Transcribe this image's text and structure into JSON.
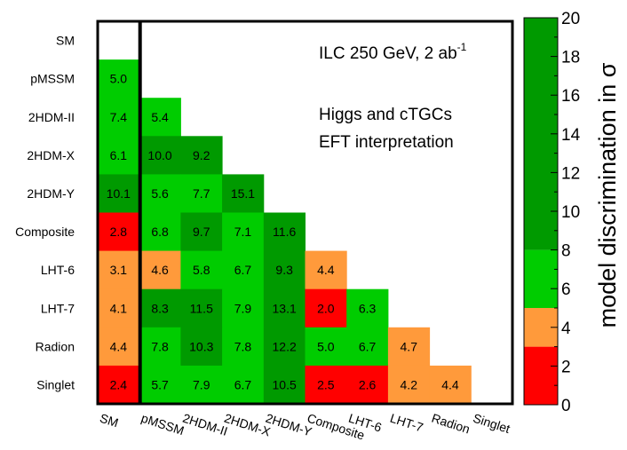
{
  "chart_data": {
    "type": "heatmap",
    "rows": [
      "SM",
      "pMSSM",
      "2HDM-II",
      "2HDM-X",
      "2HDM-Y",
      "Composite",
      "LHT-6",
      "LHT-7",
      "Radion",
      "Singlet"
    ],
    "columns": [
      "SM",
      "pMSSM",
      "2HDM-II",
      "2HDM-X",
      "2HDM-Y",
      "Composite",
      "LHT-6",
      "LHT-7",
      "Radion",
      "Singlet"
    ],
    "values": [
      [
        null,
        null,
        null,
        null,
        null,
        null,
        null,
        null,
        null,
        null
      ],
      [
        5.0,
        null,
        null,
        null,
        null,
        null,
        null,
        null,
        null,
        null
      ],
      [
        7.4,
        5.4,
        null,
        null,
        null,
        null,
        null,
        null,
        null,
        null
      ],
      [
        6.1,
        10.0,
        9.2,
        null,
        null,
        null,
        null,
        null,
        null,
        null
      ],
      [
        10.1,
        5.6,
        7.7,
        15.1,
        null,
        null,
        null,
        null,
        null,
        null
      ],
      [
        2.8,
        6.8,
        9.7,
        7.1,
        11.6,
        null,
        null,
        null,
        null,
        null
      ],
      [
        3.1,
        4.6,
        5.8,
        6.7,
        9.3,
        4.4,
        null,
        null,
        null,
        null
      ],
      [
        4.1,
        8.3,
        11.5,
        7.9,
        13.1,
        2.0,
        6.3,
        null,
        null,
        null
      ],
      [
        4.4,
        7.8,
        10.3,
        7.8,
        12.2,
        5.0,
        6.7,
        4.7,
        null,
        null
      ],
      [
        2.4,
        5.7,
        7.9,
        6.7,
        10.5,
        2.5,
        2.6,
        4.2,
        4.4,
        null
      ]
    ],
    "value_labels": [
      [
        null,
        null,
        null,
        null,
        null,
        null,
        null,
        null,
        null,
        null
      ],
      [
        "5.0",
        null,
        null,
        null,
        null,
        null,
        null,
        null,
        null,
        null
      ],
      [
        "7.4",
        "5.4",
        null,
        null,
        null,
        null,
        null,
        null,
        null,
        null
      ],
      [
        "6.1",
        "10.0",
        "9.2",
        null,
        null,
        null,
        null,
        null,
        null,
        null
      ],
      [
        "10.1",
        "5.6",
        "7.7",
        "15.1",
        null,
        null,
        null,
        null,
        null,
        null
      ],
      [
        "2.8",
        "6.8",
        "9.7",
        "7.1",
        "11.6",
        null,
        null,
        null,
        null,
        null
      ],
      [
        "3.1",
        "4.6",
        "5.8",
        "6.7",
        "9.3",
        "4.4",
        null,
        null,
        null,
        null
      ],
      [
        "4.1",
        "8.3",
        "11.5",
        "7.9",
        "13.1",
        "2.0",
        "6.3",
        null,
        null,
        null
      ],
      [
        "4.4",
        "7.8",
        "10.3",
        "7.8",
        "12.2",
        "5.0",
        "6.7",
        "4.7",
        null,
        null
      ],
      [
        "2.4",
        "5.7",
        "7.9",
        "6.7",
        "10.5",
        "2.5",
        "2.6",
        "4.2",
        "4.4",
        null
      ]
    ],
    "color_scale": {
      "min": 0,
      "max": 20,
      "bands": [
        {
          "from": 0,
          "to": 2,
          "color": "#ff0000"
        },
        {
          "from": 2,
          "to": 3,
          "color": "#ff0000"
        },
        {
          "from": 3,
          "to": 5,
          "color": "#ff9a3b"
        },
        {
          "from": 5,
          "to": 8,
          "color": "#00cc00"
        },
        {
          "from": 8,
          "to": 20,
          "color": "#009a00"
        }
      ],
      "colorbar_bands": [
        {
          "from": 0,
          "to": 3,
          "color": "#ff0000"
        },
        {
          "from": 3,
          "to": 5,
          "color": "#ff9a3b"
        },
        {
          "from": 5,
          "to": 8,
          "color": "#00cc00"
        },
        {
          "from": 8,
          "to": 20,
          "color": "#009a00"
        }
      ],
      "ticks": [
        "0",
        "2",
        "4",
        "6",
        "8",
        "10",
        "12",
        "14",
        "16",
        "18",
        "20"
      ],
      "title": "model discrimination in σ"
    },
    "annotations": {
      "line1_main": "ILC 250 GeV, 2 ab",
      "line1_sup": "-1",
      "line2": "Higgs and cTGCs",
      "line3": "EFT interpretation"
    }
  }
}
